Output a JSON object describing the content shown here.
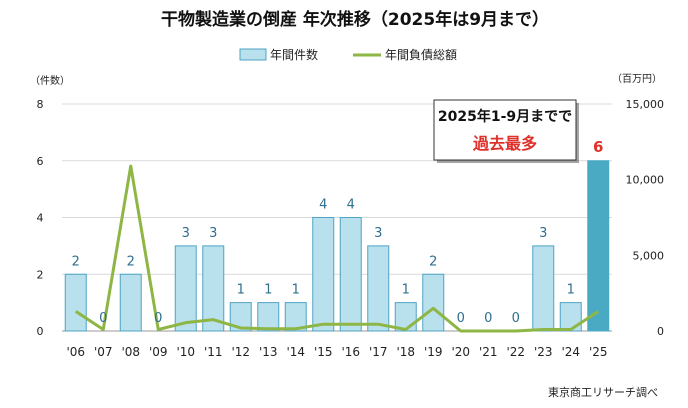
{
  "chart_data": {
    "type": "bar+line",
    "title": "干物製造業の倒産 年次推移（2025年は9月まで）",
    "categories": [
      "'06",
      "'07",
      "'08",
      "'09",
      "'10",
      "'11",
      "'12",
      "'13",
      "'14",
      "'15",
      "'16",
      "'17",
      "'18",
      "'19",
      "'20",
      "'21",
      "'22",
      "'23",
      "'24",
      "'25"
    ],
    "series": [
      {
        "name": "年間件数",
        "type": "bar",
        "axis": "left",
        "values": [
          2,
          0,
          2,
          0,
          3,
          3,
          1,
          1,
          1,
          4,
          4,
          3,
          1,
          2,
          0,
          0,
          0,
          3,
          1,
          6
        ]
      },
      {
        "name": "年間負債総額",
        "type": "line",
        "axis": "right",
        "values": [
          1300,
          100,
          10900,
          100,
          550,
          750,
          200,
          150,
          150,
          450,
          450,
          450,
          100,
          1500,
          0,
          0,
          0,
          100,
          100,
          1300
        ]
      }
    ],
    "y_left": {
      "unit": "（件数）",
      "ylim": [
        0,
        8
      ],
      "ticks": [
        "0",
        "2",
        "4",
        "6",
        "8"
      ]
    },
    "y_right": {
      "unit": "（百万円）",
      "ylim": [
        0,
        15000
      ],
      "ticks": [
        "0",
        "5,000",
        "10,000",
        "15,000"
      ]
    },
    "legend_position": "top",
    "grid": true,
    "annotation": {
      "line1": "2025年1-9月までで",
      "line2": "過去最多"
    },
    "highlight_index": 19,
    "source": "東京商工リサーチ調べ",
    "colors": {
      "bar": "#b9e0ed",
      "bar_edge": "#4fa3c4",
      "bar_highlight": "#4aaac4",
      "line": "#8db645",
      "label": "#2f6f8f",
      "highlight_label": "#e0302a",
      "grid": "#d9d9d9"
    }
  }
}
